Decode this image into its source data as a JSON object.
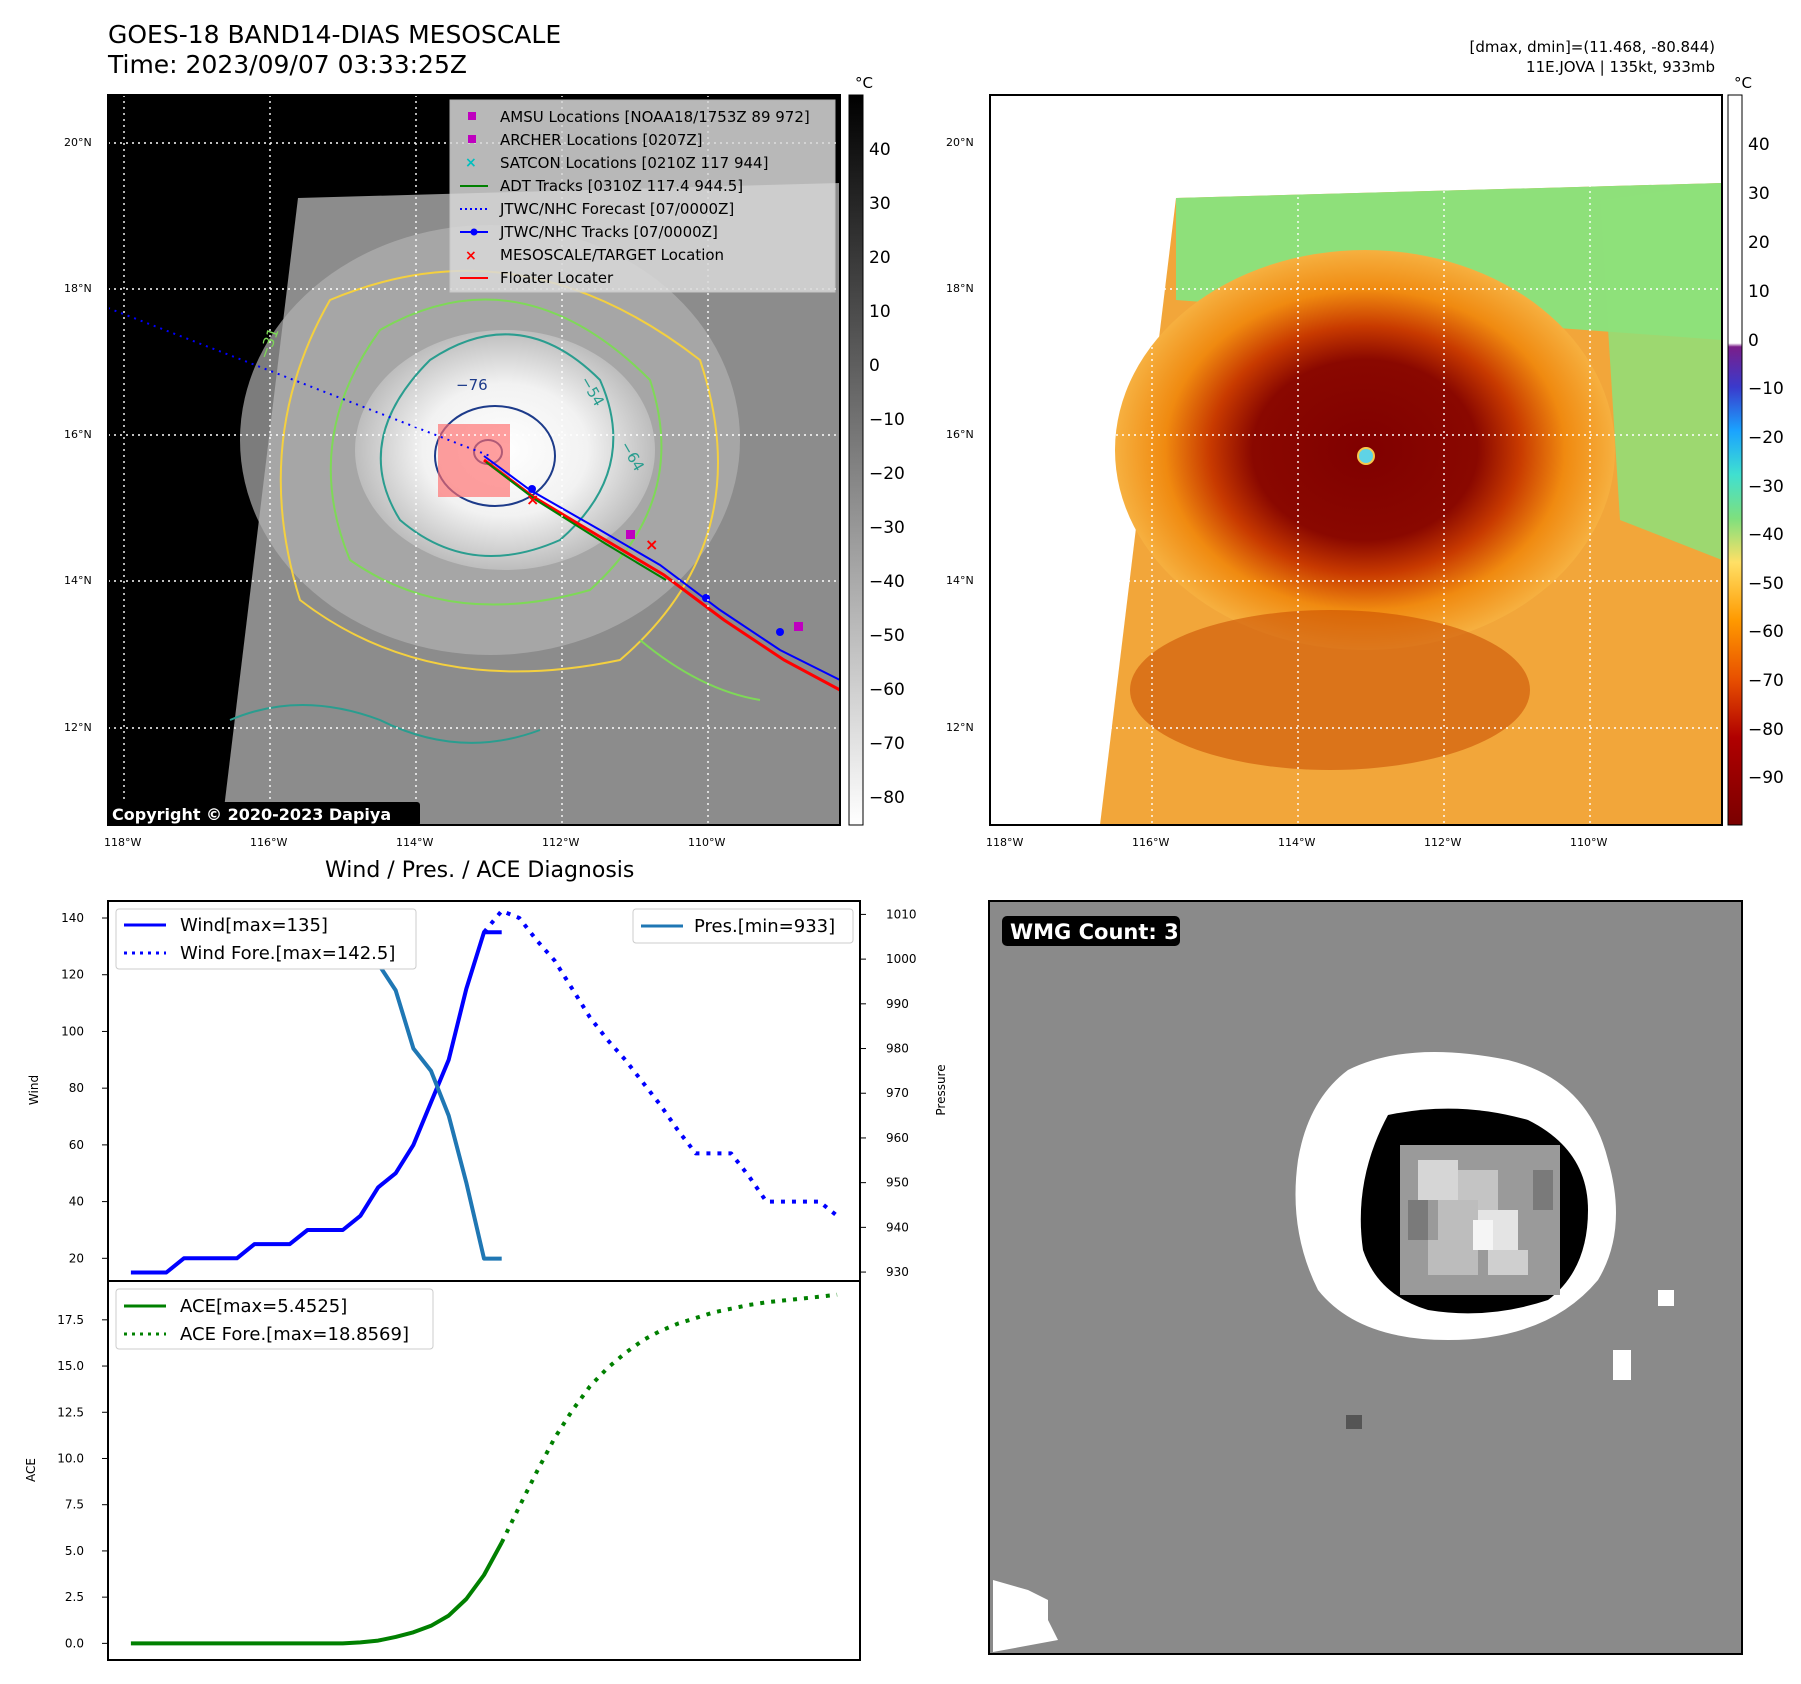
{
  "header": {
    "title_line1": "GOES-18 BAND14-DIAS MESOSCALE",
    "title_line2": "Time: 2023/09/07 03:33:25Z",
    "stats_line1": "[dmax, dmin]=(11.468, -80.844)",
    "stats_line2": "11E.JOVA | 135kt, 933mb"
  },
  "colors": {
    "wind": "#0000ff",
    "pressure": "#1f77b4",
    "ace": "#008000",
    "amsu": "#bf00bf",
    "archer": "#bf00bf",
    "satcon": "#00bfbf",
    "adt": "#008000",
    "floater": "#ff0000",
    "mesoscale": "#ff0000"
  },
  "map_left": {
    "unit": "°C",
    "lat_labels": [
      "20°N",
      "18°N",
      "16°N",
      "14°N",
      "12°N"
    ],
    "lon_labels": [
      "118°W",
      "116°W",
      "114°W",
      "112°W",
      "110°W"
    ],
    "colorbar_ticks": [
      "40",
      "30",
      "20",
      "10",
      "0",
      "−10",
      "−20",
      "−30",
      "−40",
      "−50",
      "−60",
      "−70",
      "−80"
    ],
    "copyright": "Copyright © 2020-2023 Dapiya",
    "contour_labels": [
      "−76",
      "−64",
      "−54",
      "−31"
    ],
    "legend": [
      {
        "label": "AMSU Locations [NOAA18/1753Z 89 972]",
        "symbol": "square",
        "color": "#bf00bf"
      },
      {
        "label": "ARCHER Locations [0207Z]",
        "symbol": "square",
        "color": "#bf00bf"
      },
      {
        "label": "SATCON Locations [0210Z 117 944]",
        "symbol": "x",
        "color": "#00bfbf"
      },
      {
        "label": "ADT Tracks [0310Z 117.4 944.5]",
        "symbol": "line",
        "color": "#008000"
      },
      {
        "label": "JTWC/NHC Forecast [07/0000Z]",
        "symbol": "dotted",
        "color": "#0000ff"
      },
      {
        "label": "JTWC/NHC Tracks [07/0000Z]",
        "symbol": "line-dot",
        "color": "#0000ff"
      },
      {
        "label": "MESOSCALE/TARGET Location",
        "symbol": "x",
        "color": "#ff0000"
      },
      {
        "label": "Floater Locater",
        "symbol": "line",
        "color": "#ff0000"
      }
    ]
  },
  "map_right": {
    "unit": "°C",
    "lat_labels": [
      "20°N",
      "18°N",
      "16°N",
      "14°N",
      "12°N"
    ],
    "lon_labels": [
      "118°W",
      "116°W",
      "114°W",
      "112°W",
      "110°W"
    ],
    "colorbar_ticks": [
      "40",
      "30",
      "20",
      "10",
      "0",
      "−10",
      "−20",
      "−30",
      "−40",
      "−50",
      "−60",
      "−70",
      "−80",
      "−90"
    ]
  },
  "wmg": {
    "badge": "WMG Count: 3"
  },
  "chart_data": [
    {
      "type": "line",
      "title": "Wind / Pres. / ACE Diagnosis",
      "ylabel": "Wind",
      "ylabel_right": "Pressure",
      "ylim": [
        12,
        146
      ],
      "ylim_right": [
        928,
        1013
      ],
      "yticks": [
        20,
        40,
        60,
        80,
        100,
        120,
        140
      ],
      "yticks_right": [
        930,
        940,
        950,
        960,
        970,
        980,
        990,
        1000,
        1010
      ],
      "legend_left": [
        "Wind[max=135]",
        "Wind Fore.[max=142.5]"
      ],
      "legend_right": [
        "Pres.[min=933]"
      ],
      "series": [
        {
          "name": "Wind[max=135]",
          "style": "solid",
          "axis": "left",
          "x": [
            0,
            1,
            2,
            3,
            4,
            5,
            6,
            7,
            8,
            9,
            10,
            11,
            12,
            13,
            14,
            15,
            16,
            17,
            18,
            19,
            20,
            21
          ],
          "values": [
            15,
            15,
            15,
            20,
            20,
            20,
            20,
            25,
            25,
            25,
            30,
            30,
            30,
            35,
            45,
            50,
            60,
            75,
            90,
            115,
            135,
            135
          ]
        },
        {
          "name": "Wind Fore.[max=142.5]",
          "style": "dotted",
          "axis": "left",
          "x": [
            20,
            21,
            22,
            23,
            24,
            25,
            26,
            27,
            28,
            29,
            30,
            31,
            32,
            33,
            34,
            35,
            36,
            37,
            38,
            39,
            40
          ],
          "values": [
            135,
            142.5,
            140,
            132,
            125,
            115,
            105,
            97,
            90,
            82,
            74,
            65,
            57,
            57,
            57,
            49,
            40,
            40,
            40,
            40,
            35
          ]
        },
        {
          "name": "Pres.[min=933]",
          "style": "solid",
          "axis": "right",
          "x": [
            0,
            1,
            2,
            3,
            4,
            5,
            6,
            7,
            8,
            9,
            10,
            11,
            12,
            13,
            14,
            15,
            16,
            17,
            18,
            19,
            20,
            21
          ],
          "values": [
            1010,
            1010,
            1010,
            1010,
            1010,
            1010,
            1010,
            1009,
            1009,
            1009,
            1009,
            1008,
            1006,
            1003,
            999,
            993,
            980,
            975,
            965,
            950,
            933,
            933
          ]
        }
      ]
    },
    {
      "type": "line",
      "ylabel": "ACE",
      "ylim": [
        -0.9,
        19.6
      ],
      "yticks": [
        "0.0",
        "2.5",
        "5.0",
        "7.5",
        "10.0",
        "12.5",
        "15.0",
        "17.5"
      ],
      "legend": [
        "ACE[max=5.4525]",
        "ACE Fore.[max=18.8569]"
      ],
      "series": [
        {
          "name": "ACE[max=5.4525]",
          "style": "solid",
          "x": [
            0,
            1,
            2,
            3,
            4,
            5,
            6,
            7,
            8,
            9,
            10,
            11,
            12,
            13,
            14,
            15,
            16,
            17,
            18,
            19,
            20,
            21
          ],
          "values": [
            0,
            0,
            0,
            0,
            0,
            0,
            0,
            0,
            0,
            0,
            0,
            0,
            0,
            0.05,
            0.15,
            0.35,
            0.6,
            0.95,
            1.5,
            2.4,
            3.7,
            5.45
          ]
        },
        {
          "name": "ACE Fore.[max=18.8569]",
          "style": "dotted",
          "x": [
            21,
            22,
            23,
            24,
            25,
            26,
            27,
            28,
            29,
            30,
            31,
            32,
            33,
            34,
            35,
            36,
            37,
            38,
            39,
            40
          ],
          "values": [
            5.45,
            7.4,
            9.3,
            11.1,
            12.6,
            13.9,
            14.9,
            15.7,
            16.4,
            16.9,
            17.3,
            17.6,
            17.9,
            18.1,
            18.3,
            18.45,
            18.55,
            18.65,
            18.75,
            18.86
          ]
        }
      ]
    }
  ]
}
